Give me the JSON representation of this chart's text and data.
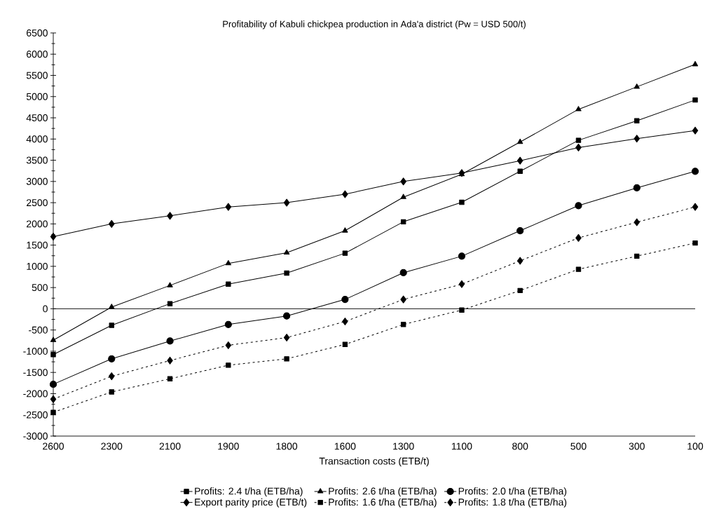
{
  "chart_data": {
    "type": "line",
    "title": "Profitability of Kabuli chickpea production in Ada'a district (Pw = USD 500/t)",
    "xlabel": "Transaction costs (ETB/t)",
    "categories": [
      "2600",
      "2300",
      "2100",
      "1900",
      "1800",
      "1600",
      "1300",
      "1100",
      "800",
      "500",
      "300",
      "100"
    ],
    "ylim": [
      -3000,
      6500
    ],
    "yticks": [
      -3000,
      -2500,
      -2000,
      -1500,
      -1000,
      -500,
      0,
      500,
      1000,
      1500,
      2000,
      2500,
      3000,
      3500,
      4000,
      4500,
      5000,
      5500,
      6000,
      6500
    ],
    "legend": "bottom",
    "grid": false,
    "ref_lines": [
      {
        "axis": "y",
        "value": 0,
        "color": "#000000",
        "line_style": "solid"
      }
    ],
    "series": [
      {
        "name": "Profits: 2.4 t/ha (ETB/ha)",
        "color": "#000000",
        "marker": "square",
        "line_style": "solid",
        "values": [
          -1080,
          -390,
          120,
          580,
          840,
          1310,
          2050,
          2510,
          3240,
          3970,
          4430,
          4920
        ]
      },
      {
        "name": "Profits: 2.6 t/ha (ETB/ha)",
        "color": "#000000",
        "marker": "triangle",
        "line_style": "solid",
        "values": [
          -740,
          40,
          550,
          1070,
          1320,
          1840,
          2630,
          3170,
          3930,
          4700,
          5230,
          5760
        ]
      },
      {
        "name": "Profits: 2.0 t/ha (ETB/ha)",
        "color": "#000000",
        "marker": "circle",
        "line_style": "solid",
        "values": [
          -1780,
          -1180,
          -760,
          -370,
          -170,
          220,
          850,
          1240,
          1840,
          2430,
          2850,
          3240
        ]
      },
      {
        "name": "Export parity price (ETB/t)",
        "color": "#000000",
        "marker": "diamond",
        "line_style": "solid",
        "values": [
          1700,
          2000,
          2190,
          2400,
          2500,
          2700,
          3000,
          3200,
          3490,
          3800,
          4010,
          4200
        ]
      },
      {
        "name": "Profits: 1.6 t/ha (ETB/ha)",
        "color": "#000000",
        "marker": "square",
        "line_style": "dashed",
        "values": [
          -2440,
          -1960,
          -1650,
          -1330,
          -1180,
          -840,
          -370,
          -30,
          430,
          930,
          1240,
          1550
        ]
      },
      {
        "name": "Profits: 1.8 t/ha (ETB/ha)",
        "color": "#000000",
        "marker": "diamond",
        "line_style": "dashed",
        "values": [
          -2130,
          -1590,
          -1220,
          -860,
          -680,
          -300,
          220,
          580,
          1130,
          1670,
          2040,
          2400
        ]
      }
    ]
  }
}
